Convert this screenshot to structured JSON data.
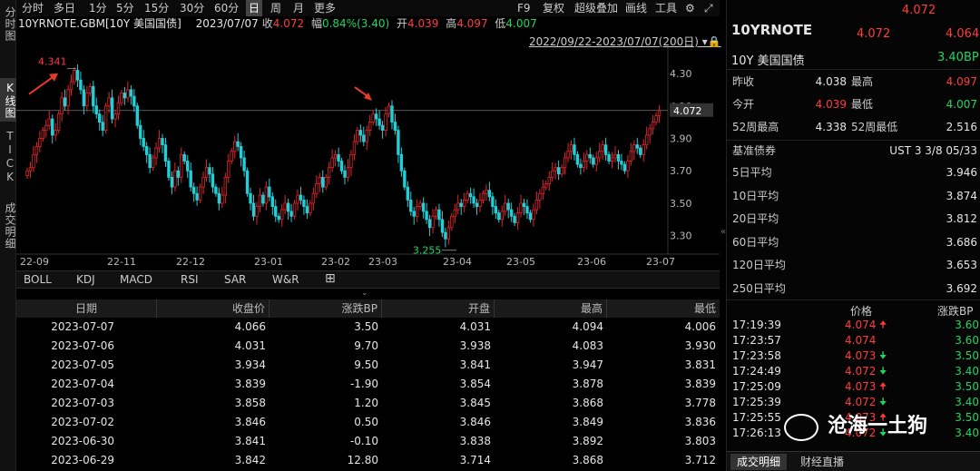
{
  "left_tabs": [
    "分时图",
    "K线图",
    "TICK",
    "成交明细"
  ],
  "toolbar": {
    "periods": [
      "分时",
      "多日",
      "1分",
      "5分",
      "15分",
      "30分",
      "60分",
      "日",
      "周",
      "月",
      "更多"
    ],
    "active_period": "日",
    "right_items": [
      "F9",
      "复权",
      "超级叠加",
      "画线",
      "工具",
      "⚙",
      "⤢"
    ]
  },
  "infobar": {
    "symbol": "10YRNOTE.GBM[10Y 美国国债]",
    "date": "2023/07/07",
    "close_label": "收",
    "close": "4.072",
    "chg_label": "幅",
    "chg": "0.84%(3.40)",
    "open_label": "开",
    "open": "4.039",
    "high_label": "高",
    "high": "4.097",
    "low_label": "低",
    "low": "4.007"
  },
  "range_label": "2022/09/22-2023/07/07(200日)",
  "chart_data": {
    "type": "candlestick",
    "x_ticks": [
      "22-09",
      "22-11",
      "22-12",
      "23-01",
      "23-02",
      "23-03",
      "23-04",
      "23-05",
      "23-06",
      "23-07"
    ],
    "y_ticks": [
      "4.30",
      "4.10",
      "3.90",
      "3.70",
      "3.50",
      "3.30"
    ],
    "ylim": [
      3.22,
      4.44
    ],
    "current_price": "4.072",
    "annotations": {
      "high": "4.341",
      "low": "3.255"
    },
    "closes": [
      3.7,
      3.72,
      3.8,
      3.85,
      3.9,
      3.95,
      3.98,
      4.02,
      3.92,
      3.95,
      4.05,
      4.15,
      4.1,
      4.2,
      4.25,
      4.32,
      4.26,
      4.2,
      4.1,
      4.18,
      4.22,
      4.1,
      4.05,
      4.0,
      3.95,
      4.1,
      4.15,
      4.02,
      4.05,
      4.12,
      4.18,
      4.15,
      4.2,
      4.16,
      4.1,
      3.98,
      3.9,
      3.85,
      3.8,
      3.72,
      3.78,
      3.84,
      3.9,
      3.86,
      3.76,
      3.66,
      3.6,
      3.7,
      3.66,
      3.8,
      3.76,
      3.7,
      3.6,
      3.56,
      3.52,
      3.6,
      3.66,
      3.72,
      3.68,
      3.6,
      3.56,
      3.5,
      3.55,
      3.66,
      3.76,
      3.82,
      3.88,
      3.85,
      3.78,
      3.7,
      3.56,
      3.5,
      3.42,
      3.48,
      3.55,
      3.5,
      3.6,
      3.54,
      3.48,
      3.42,
      3.4,
      3.46,
      3.5,
      3.45,
      3.42,
      3.5,
      3.55,
      3.52,
      3.48,
      3.44,
      3.5,
      3.56,
      3.62,
      3.66,
      3.6,
      3.66,
      3.72,
      3.78,
      3.8,
      3.76,
      3.7,
      3.66,
      3.72,
      3.8,
      3.88,
      3.95,
      3.92,
      3.88,
      3.95,
      4.0,
      4.05,
      4.02,
      3.98,
      3.95,
      4.05,
      4.1,
      4.0,
      3.95,
      3.8,
      3.7,
      3.6,
      3.52,
      3.45,
      3.42,
      3.48,
      3.5,
      3.45,
      3.4,
      3.35,
      3.42,
      3.46,
      3.4,
      3.32,
      3.28,
      3.35,
      3.42,
      3.46,
      3.5,
      3.48,
      3.52,
      3.56,
      3.54,
      3.5,
      3.48,
      3.52,
      3.56,
      3.58,
      3.54,
      3.48,
      3.44,
      3.4,
      3.45,
      3.5,
      3.46,
      3.42,
      3.38,
      3.44,
      3.5,
      3.48,
      3.44,
      3.4,
      3.46,
      3.52,
      3.56,
      3.6,
      3.62,
      3.66,
      3.7,
      3.72,
      3.68,
      3.72,
      3.78,
      3.82,
      3.86,
      3.8,
      3.74,
      3.72,
      3.76,
      3.8,
      3.78,
      3.74,
      3.78,
      3.82,
      3.86,
      3.8,
      3.76,
      3.78,
      3.8,
      3.76,
      3.74,
      3.7,
      3.76,
      3.82,
      3.86,
      3.84,
      3.8,
      3.86,
      3.92,
      3.96,
      4.0,
      4.04,
      4.07
    ]
  },
  "indicator_tabs": [
    "BOLL",
    "KDJ",
    "MACD",
    "RSI",
    "SAR",
    "W&R",
    "⊞"
  ],
  "table": {
    "headers": [
      "日期",
      "收盘价",
      "涨跌BP",
      "开盘",
      "最高",
      "最低"
    ],
    "rows": [
      [
        "2023-07-07",
        "4.066",
        "3.50",
        "4.031",
        "4.094",
        "4.006"
      ],
      [
        "2023-07-06",
        "4.031",
        "9.70",
        "3.938",
        "4.083",
        "3.930"
      ],
      [
        "2023-07-05",
        "3.934",
        "9.50",
        "3.841",
        "3.947",
        "3.831"
      ],
      [
        "2023-07-04",
        "3.839",
        "-1.90",
        "3.854",
        "3.878",
        "3.839"
      ],
      [
        "2023-07-03",
        "3.858",
        "1.20",
        "3.845",
        "3.868",
        "3.778"
      ],
      [
        "2023-07-02",
        "3.846",
        "0.50",
        "3.846",
        "3.849",
        "3.836"
      ],
      [
        "2023-06-30",
        "3.841",
        "-0.10",
        "3.838",
        "3.892",
        "3.803"
      ],
      [
        "2023-06-29",
        "3.842",
        "12.80",
        "3.714",
        "3.868",
        "3.712"
      ]
    ]
  },
  "right_panel": {
    "title": "10YRNOTE",
    "name": "10Y 美国国债",
    "price_top": "4.072",
    "price_left": "4.072",
    "price_right": "4.064",
    "change_bp": "3.40BP",
    "stats": [
      {
        "l1": "昨收",
        "v1": "4.038",
        "l2": "最高",
        "v2": "4.097"
      },
      {
        "l1": "今开",
        "v1": "4.039",
        "l2": "最低",
        "v2": "4.007"
      },
      {
        "l1": "52周最高",
        "v1": "4.338",
        "l2": "52周最低",
        "v2": "2.516"
      }
    ],
    "benchmark_label": "基准债券",
    "benchmark_value": "UST 3 3/8 05/33",
    "averages": [
      {
        "label": "5日平均",
        "value": "3.946"
      },
      {
        "label": "10日平均",
        "value": "3.874"
      },
      {
        "label": "20日平均",
        "value": "3.812"
      },
      {
        "label": "60日平均",
        "value": "3.686"
      },
      {
        "label": "120日平均",
        "value": "3.653"
      },
      {
        "label": "250日平均",
        "value": "3.692"
      }
    ],
    "tick_headers": [
      "价格",
      "涨跌BP"
    ],
    "ticks": [
      {
        "time": "17:19:39",
        "price": "4.074",
        "dir": "up",
        "bp": "3.60"
      },
      {
        "time": "17:23:57",
        "price": "4.074",
        "dir": "none",
        "bp": "3.60"
      },
      {
        "time": "17:23:58",
        "price": "4.073",
        "dir": "down",
        "bp": "3.50"
      },
      {
        "time": "17:24:49",
        "price": "4.072",
        "dir": "down",
        "bp": "3.40"
      },
      {
        "time": "17:25:09",
        "price": "4.073",
        "dir": "up",
        "bp": "3.50"
      },
      {
        "time": "17:25:39",
        "price": "4.072",
        "dir": "down",
        "bp": "3.40"
      },
      {
        "time": "17:25:55",
        "price": "4.073",
        "dir": "up",
        "bp": "3.50"
      },
      {
        "time": "17:26:13",
        "price": "4.072",
        "dir": "down",
        "bp": "3.40"
      }
    ],
    "bottom_tabs": [
      "成交明细",
      "财经直播"
    ]
  },
  "watermark": "沧海一土狗",
  "colors": {
    "up": "#ff3b3b",
    "down": "#1ed760",
    "candle_up": "#e2242b",
    "candle_down": "#20d0d8"
  }
}
